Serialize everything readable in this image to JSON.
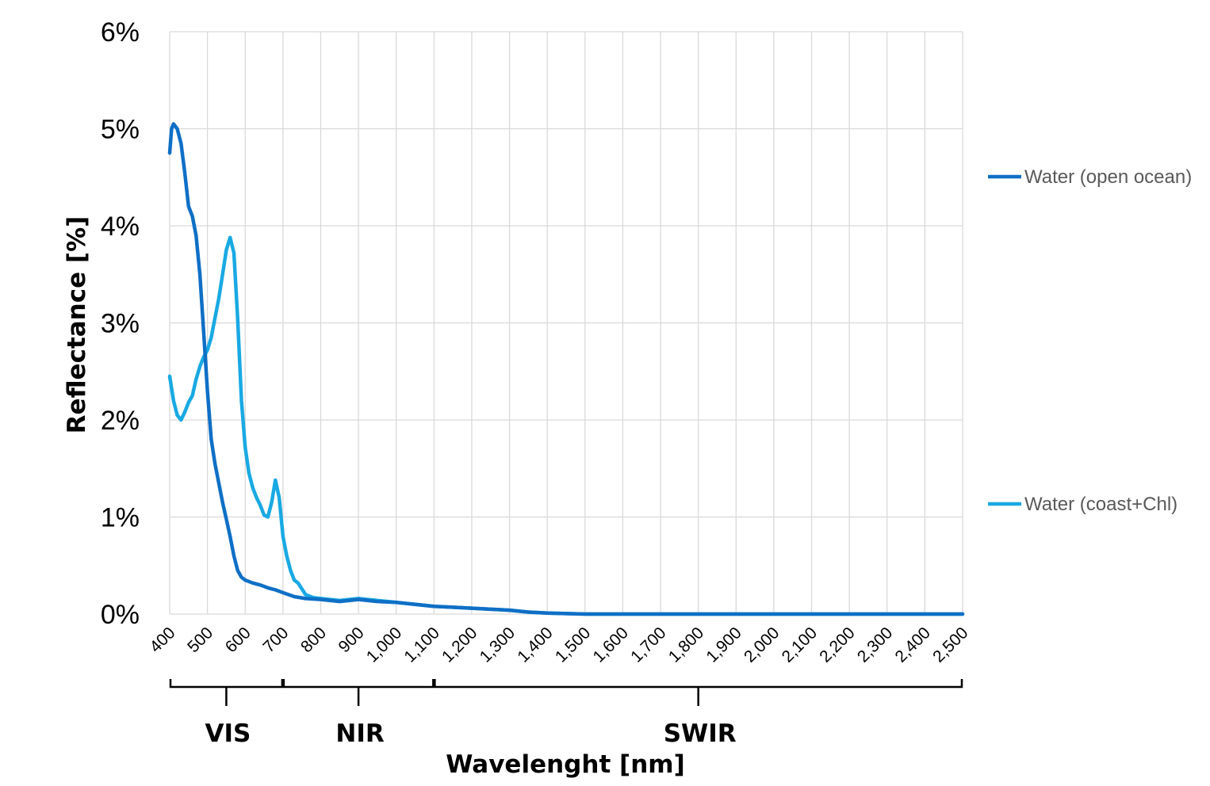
{
  "chart_data": {
    "type": "line",
    "xlabel": "Wavelenght [nm]",
    "ylabel": "Reflectance [%]",
    "xlim": [
      400,
      2500
    ],
    "ylim": [
      0,
      6
    ],
    "x_ticks": [
      400,
      500,
      600,
      700,
      800,
      900,
      1000,
      1100,
      1200,
      1300,
      1400,
      1500,
      1600,
      1700,
      1800,
      1900,
      2000,
      2100,
      2200,
      2300,
      2400,
      2500
    ],
    "x_tick_labels": [
      "400",
      "500",
      "600",
      "700",
      "800",
      "900",
      "1,000",
      "1,100",
      "1,200",
      "1,300",
      "1,400",
      "1,500",
      "1,600",
      "1,700",
      "1,800",
      "1,900",
      "2,000",
      "2,100",
      "2,200",
      "2,300",
      "2,400",
      "2,500"
    ],
    "y_ticks": [
      0,
      1,
      2,
      3,
      4,
      5,
      6
    ],
    "y_tick_labels": [
      "0%",
      "1%",
      "2%",
      "3%",
      "4%",
      "5%",
      "6%"
    ],
    "grid": true,
    "legend_position": "right",
    "regions": [
      {
        "label": "VIS",
        "from": 400,
        "to": 700
      },
      {
        "label": "NIR",
        "from": 700,
        "to": 1100
      },
      {
        "label": "SWIR",
        "from": 1100,
        "to": 2500
      }
    ],
    "series": [
      {
        "name": "Water (open ocean)",
        "color": "#0f6fc6",
        "points": [
          [
            400,
            4.75
          ],
          [
            405,
            5.0
          ],
          [
            410,
            5.05
          ],
          [
            420,
            5.0
          ],
          [
            430,
            4.85
          ],
          [
            440,
            4.55
          ],
          [
            450,
            4.2
          ],
          [
            460,
            4.1
          ],
          [
            470,
            3.9
          ],
          [
            480,
            3.5
          ],
          [
            490,
            2.9
          ],
          [
            500,
            2.3
          ],
          [
            510,
            1.8
          ],
          [
            520,
            1.55
          ],
          [
            530,
            1.35
          ],
          [
            540,
            1.15
          ],
          [
            550,
            0.98
          ],
          [
            560,
            0.8
          ],
          [
            570,
            0.6
          ],
          [
            580,
            0.45
          ],
          [
            590,
            0.38
          ],
          [
            600,
            0.35
          ],
          [
            620,
            0.32
          ],
          [
            640,
            0.3
          ],
          [
            660,
            0.27
          ],
          [
            680,
            0.25
          ],
          [
            700,
            0.22
          ],
          [
            730,
            0.18
          ],
          [
            760,
            0.16
          ],
          [
            800,
            0.15
          ],
          [
            850,
            0.13
          ],
          [
            900,
            0.15
          ],
          [
            950,
            0.13
          ],
          [
            1000,
            0.12
          ],
          [
            1050,
            0.1
          ],
          [
            1100,
            0.08
          ],
          [
            1150,
            0.07
          ],
          [
            1200,
            0.06
          ],
          [
            1250,
            0.05
          ],
          [
            1300,
            0.04
          ],
          [
            1350,
            0.02
          ],
          [
            1400,
            0.01
          ],
          [
            1500,
            0.0
          ],
          [
            2500,
            0.0
          ]
        ]
      },
      {
        "name": "Water (coast+Chl)",
        "color": "#19a9e3",
        "points": [
          [
            400,
            2.45
          ],
          [
            410,
            2.2
          ],
          [
            420,
            2.05
          ],
          [
            430,
            2.0
          ],
          [
            440,
            2.08
          ],
          [
            450,
            2.18
          ],
          [
            460,
            2.25
          ],
          [
            470,
            2.42
          ],
          [
            480,
            2.55
          ],
          [
            490,
            2.65
          ],
          [
            500,
            2.72
          ],
          [
            510,
            2.85
          ],
          [
            520,
            3.05
          ],
          [
            530,
            3.25
          ],
          [
            540,
            3.5
          ],
          [
            550,
            3.75
          ],
          [
            560,
            3.88
          ],
          [
            570,
            3.72
          ],
          [
            580,
            3.05
          ],
          [
            590,
            2.2
          ],
          [
            600,
            1.72
          ],
          [
            610,
            1.45
          ],
          [
            620,
            1.3
          ],
          [
            630,
            1.2
          ],
          [
            640,
            1.12
          ],
          [
            650,
            1.02
          ],
          [
            660,
            1.0
          ],
          [
            670,
            1.15
          ],
          [
            680,
            1.38
          ],
          [
            690,
            1.2
          ],
          [
            700,
            0.8
          ],
          [
            710,
            0.6
          ],
          [
            720,
            0.45
          ],
          [
            730,
            0.35
          ],
          [
            740,
            0.32
          ],
          [
            760,
            0.2
          ],
          [
            780,
            0.17
          ],
          [
            800,
            0.16
          ],
          [
            850,
            0.14
          ],
          [
            900,
            0.16
          ],
          [
            950,
            0.14
          ],
          [
            1000,
            0.12
          ],
          [
            1050,
            0.1
          ],
          [
            1100,
            0.08
          ],
          [
            1150,
            0.07
          ],
          [
            1200,
            0.06
          ],
          [
            1250,
            0.05
          ],
          [
            1300,
            0.04
          ],
          [
            1350,
            0.02
          ],
          [
            1400,
            0.01
          ],
          [
            1500,
            0.0
          ],
          [
            2500,
            0.0
          ]
        ]
      }
    ]
  }
}
